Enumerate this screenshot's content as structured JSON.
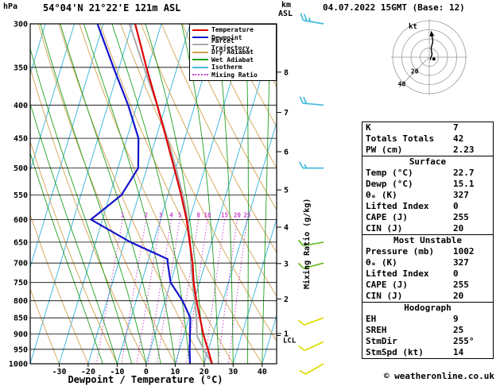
{
  "header": {
    "pressure_unit": "hPa",
    "station": "54°04'N 21°22'E 121m ASL",
    "altitude_unit": "km",
    "altitude_ref": "ASL",
    "date_title": "04.07.2022 15GMT (Base: 12)"
  },
  "axes": {
    "xlabel": "Dewpoint / Temperature (°C)",
    "x_ticks": [
      -30,
      -20,
      -10,
      0,
      10,
      20,
      30,
      40
    ],
    "pressure_ticks": [
      300,
      350,
      400,
      450,
      500,
      550,
      600,
      650,
      700,
      750,
      800,
      850,
      900,
      950,
      1000
    ],
    "km_ticks": [
      1,
      2,
      3,
      4,
      5,
      6,
      7,
      8
    ],
    "mixing_ratio_axis_label": "Mixing Ratio (g/kg)",
    "lcl_label": "LCL"
  },
  "legend": [
    {
      "label": "Temperature",
      "color": "#e00000",
      "dotted": false
    },
    {
      "label": "Dewpoint",
      "color": "#1414cc",
      "dotted": false
    },
    {
      "label": "Parcel Trajectory",
      "color": "#aaaaaa",
      "dotted": false
    },
    {
      "label": "Dry Adiabat",
      "color": "#d2a24e",
      "dotted": false
    },
    {
      "label": "Wet Adiabat",
      "color": "#22a022",
      "dotted": false
    },
    {
      "label": "Isotherm",
      "color": "#44bbdd",
      "dotted": false
    },
    {
      "label": "Mixing Ratio",
      "color": "#cc44cc",
      "dotted": true
    }
  ],
  "chart_data": {
    "type": "line",
    "subtype": "skew-t log-p sounding",
    "pressure_range_hpa": [
      300,
      1000
    ],
    "temp_axis_range_c": [
      -40,
      45
    ],
    "isotherm_step_c": 10,
    "mixing_ratio_lines_gkg": [
      1,
      2,
      3,
      4,
      5,
      8,
      10,
      15,
      20,
      25
    ],
    "lcl_pressure_hpa": 905,
    "temperature_profile": {
      "pressure_hpa": [
        1000,
        950,
        925,
        900,
        850,
        800,
        750,
        700,
        650,
        600,
        550,
        500,
        450,
        400,
        350,
        300
      ],
      "temp_c": [
        22.7,
        19.8,
        18.2,
        16.6,
        13.8,
        10.8,
        8.0,
        5.6,
        2.4,
        -1.0,
        -5.4,
        -10.6,
        -16.4,
        -23.0,
        -30.6,
        -39.0
      ]
    },
    "dewpoint_profile": {
      "pressure_hpa": [
        1000,
        950,
        925,
        900,
        850,
        800,
        750,
        700,
        690,
        650,
        600,
        550,
        500,
        450,
        400,
        350,
        300
      ],
      "temp_c": [
        15.1,
        13.5,
        12.8,
        12.0,
        10.5,
        6.0,
        0.0,
        -3.0,
        -3.5,
        -18.0,
        -34.0,
        -26.0,
        -23.0,
        -26.0,
        -33.0,
        -42.0,
        -52.0
      ]
    },
    "parcel_profile": {
      "pressure_hpa": [
        1000,
        950,
        905,
        850,
        800,
        750,
        700,
        650,
        600,
        550,
        500,
        450,
        400,
        350,
        300
      ],
      "temp_c": [
        22.7,
        18.3,
        14.6,
        12.6,
        10.2,
        7.6,
        5.0,
        2.6,
        -0.6,
        -4.8,
        -10.0,
        -16.0,
        -23.0,
        -31.5,
        -41.0
      ]
    },
    "wind_barbs": [
      {
        "pressure_hpa": 300,
        "speed_kt": 25,
        "dir_deg": 280,
        "color": "#44bbdd"
      },
      {
        "pressure_hpa": 400,
        "speed_kt": 20,
        "dir_deg": 275,
        "color": "#44bbdd"
      },
      {
        "pressure_hpa": 500,
        "speed_kt": 15,
        "dir_deg": 270,
        "color": "#44bbdd"
      },
      {
        "pressure_hpa": 650,
        "speed_kt": 10,
        "dir_deg": 260,
        "color": "#66bb22"
      },
      {
        "pressure_hpa": 700,
        "speed_kt": 10,
        "dir_deg": 255,
        "color": "#66bb22"
      },
      {
        "pressure_hpa": 850,
        "speed_kt": 10,
        "dir_deg": 250,
        "color": "#dddd00"
      },
      {
        "pressure_hpa": 925,
        "speed_kt": 10,
        "dir_deg": 245,
        "color": "#dddd00"
      },
      {
        "pressure_hpa": 1000,
        "speed_kt": 10,
        "dir_deg": 240,
        "color": "#dddd00"
      }
    ],
    "hodograph": {
      "unit_label": "kt",
      "rings_kt": [
        10,
        20,
        30,
        40
      ],
      "ring_labels_kt": [
        20,
        40
      ],
      "trace_uv_kt": [
        [
          1,
          -3
        ],
        [
          3,
          3
        ],
        [
          2,
          10
        ],
        [
          4,
          17
        ],
        [
          3,
          23
        ]
      ],
      "storm_uv_kt": [
        5,
        -2
      ]
    },
    "colors": {
      "temperature": "#e00000",
      "dewpoint": "#1414cc",
      "parcel": "#aaaaaa",
      "dry_adiabat": "#d2a24e",
      "wet_adiabat": "#22a022",
      "isotherm": "#44bbdd",
      "mixing_ratio": "#cc44cc",
      "grid": "#000000"
    }
  },
  "stats": {
    "sections": [
      {
        "title": null,
        "rows": [
          [
            "K",
            "7"
          ],
          [
            "Totals Totals",
            "42"
          ],
          [
            "PW (cm)",
            "2.23"
          ]
        ]
      },
      {
        "title": "Surface",
        "rows": [
          [
            "Temp (°C)",
            "22.7"
          ],
          [
            "Dewp (°C)",
            "15.1"
          ],
          [
            "θₑ (K)",
            "327"
          ],
          [
            "Lifted Index",
            "0"
          ],
          [
            "CAPE (J)",
            "255"
          ],
          [
            "CIN (J)",
            "20"
          ]
        ]
      },
      {
        "title": "Most Unstable",
        "rows": [
          [
            "Pressure (mb)",
            "1002"
          ],
          [
            "θₑ (K)",
            "327"
          ],
          [
            "Lifted Index",
            "0"
          ],
          [
            "CAPE (J)",
            "255"
          ],
          [
            "CIN (J)",
            "20"
          ]
        ]
      },
      {
        "title": "Hodograph",
        "rows": [
          [
            "EH",
            "9"
          ],
          [
            "SREH",
            "25"
          ],
          [
            "StmDir",
            "255°"
          ],
          [
            "StmSpd (kt)",
            "14"
          ]
        ]
      }
    ]
  },
  "footer": {
    "copyright": "© weatheronline.co.uk"
  }
}
